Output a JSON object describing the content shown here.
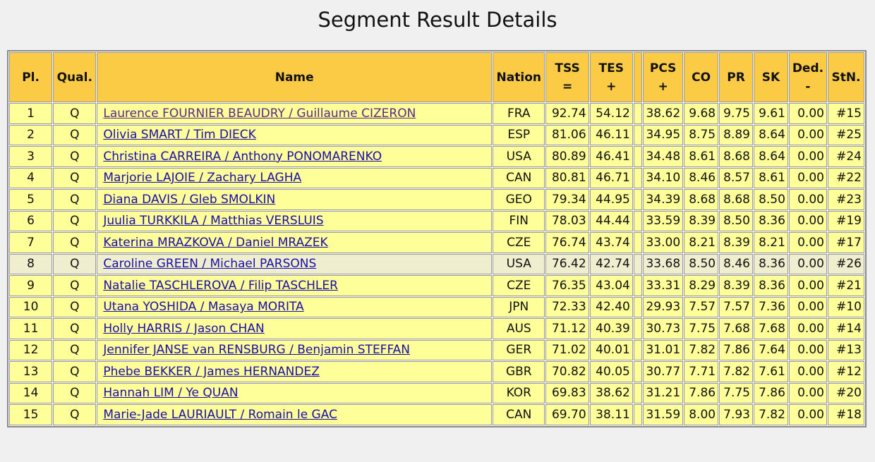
{
  "title": "Segment Result Details",
  "headers": [
    {
      "label": "Pl."
    },
    {
      "label": "Qual."
    },
    {
      "label": "Name"
    },
    {
      "label": "Nation"
    },
    {
      "label": "TSS",
      "sub": "="
    },
    {
      "label": "TES",
      "sub": "+"
    },
    {
      "label": "PCS",
      "sub": "+"
    },
    {
      "label": "CO"
    },
    {
      "label": "PR"
    },
    {
      "label": "SK"
    },
    {
      "label": "Ded.",
      "sub": "-"
    },
    {
      "label": "StN."
    }
  ],
  "rows": [
    [
      "1",
      "Q",
      "Laurence FOURNIER BEAUDRY / Guillaume CIZERON",
      "FRA",
      "92.74",
      "54.12",
      "38.62",
      "9.68",
      "9.75",
      "9.61",
      "0.00",
      "#15"
    ],
    [
      "2",
      "Q",
      "Olivia SMART / Tim DIECK",
      "ESP",
      "81.06",
      "46.11",
      "34.95",
      "8.75",
      "8.89",
      "8.64",
      "0.00",
      "#25"
    ],
    [
      "3",
      "Q",
      "Christina CARREIRA / Anthony PONOMARENKO",
      "USA",
      "80.89",
      "46.41",
      "34.48",
      "8.61",
      "8.68",
      "8.64",
      "0.00",
      "#24"
    ],
    [
      "4",
      "Q",
      "Marjorie LAJOIE / Zachary LAGHA",
      "CAN",
      "80.81",
      "46.71",
      "34.10",
      "8.46",
      "8.57",
      "8.61",
      "0.00",
      "#22"
    ],
    [
      "5",
      "Q",
      "Diana DAVIS / Gleb SMOLKIN",
      "GEO",
      "79.34",
      "44.95",
      "34.39",
      "8.68",
      "8.68",
      "8.50",
      "0.00",
      "#23"
    ],
    [
      "6",
      "Q",
      "Juulia TURKKILA / Matthias VERSLUIS",
      "FIN",
      "78.03",
      "44.44",
      "33.59",
      "8.39",
      "8.50",
      "8.36",
      "0.00",
      "#19"
    ],
    [
      "7",
      "Q",
      "Katerina MRAZKOVA / Daniel MRAZEK",
      "CZE",
      "76.74",
      "43.74",
      "33.00",
      "8.21",
      "8.39",
      "8.21",
      "0.00",
      "#17"
    ],
    [
      "8",
      "Q",
      "Caroline GREEN / Michael PARSONS",
      "USA",
      "76.42",
      "42.74",
      "33.68",
      "8.50",
      "8.46",
      "8.36",
      "0.00",
      "#26"
    ],
    [
      "9",
      "Q",
      "Natalie TASCHLEROVA / Filip TASCHLER",
      "CZE",
      "76.35",
      "43.04",
      "33.31",
      "8.29",
      "8.39",
      "8.36",
      "0.00",
      "#21"
    ],
    [
      "10",
      "Q",
      "Utana YOSHIDA / Masaya MORITA",
      "JPN",
      "72.33",
      "42.40",
      "29.93",
      "7.57",
      "7.57",
      "7.36",
      "0.00",
      "#10"
    ],
    [
      "11",
      "Q",
      "Holly HARRIS / Jason CHAN",
      "AUS",
      "71.12",
      "40.39",
      "30.73",
      "7.75",
      "7.68",
      "7.68",
      "0.00",
      "#14"
    ],
    [
      "12",
      "Q",
      "Jennifer JANSE van RENSBURG / Benjamin STEFFAN",
      "GER",
      "71.02",
      "40.01",
      "31.01",
      "7.82",
      "7.86",
      "7.64",
      "0.00",
      "#13"
    ],
    [
      "13",
      "Q",
      "Phebe BEKKER / James HERNANDEZ",
      "GBR",
      "70.82",
      "40.05",
      "30.77",
      "7.71",
      "7.82",
      "7.61",
      "0.00",
      "#12"
    ],
    [
      "14",
      "Q",
      "Hannah LIM / Ye QUAN",
      "KOR",
      "69.83",
      "38.62",
      "31.21",
      "7.86",
      "7.75",
      "7.86",
      "0.00",
      "#20"
    ],
    [
      "15",
      "Q",
      "Marie-Jade LAURIAULT / Romain le GAC",
      "CAN",
      "69.70",
      "38.11",
      "31.59",
      "8.00",
      "7.93",
      "7.82",
      "0.00",
      "#18"
    ]
  ]
}
